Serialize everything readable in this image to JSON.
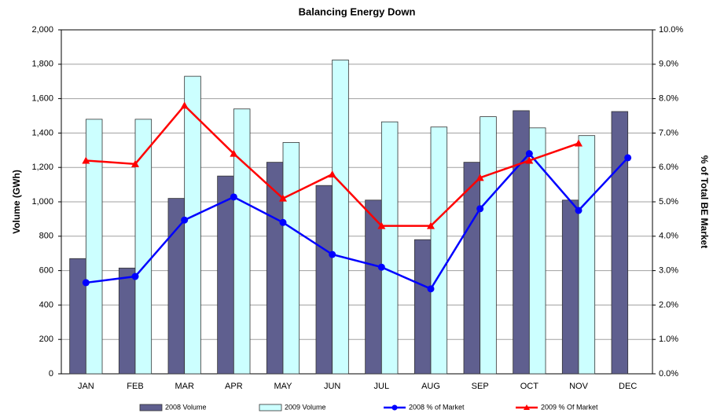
{
  "chart_data": {
    "type": "bar_line",
    "title": "Balancing Energy Down",
    "y_label": "Volume (GWh)",
    "y2_label": "% of Total BE Market",
    "categories": [
      "JAN",
      "FEB",
      "MAR",
      "APR",
      "MAY",
      "JUN",
      "JUL",
      "AUG",
      "SEP",
      "OCT",
      "NOV",
      "DEC"
    ],
    "series": [
      {
        "name": "2008 Volume",
        "type": "bar",
        "color": "#5f5f8f",
        "values": [
          670,
          615,
          1020,
          1150,
          1230,
          1095,
          1010,
          780,
          1230,
          1530,
          1010,
          1525
        ]
      },
      {
        "name": "2009 Volume",
        "type": "bar",
        "color": "#ccffff",
        "values": [
          1480,
          1480,
          1730,
          1540,
          1345,
          1825,
          1465,
          1435,
          1495,
          1430,
          1385,
          null
        ]
      },
      {
        "name": "2008 % of Market",
        "type": "line",
        "axis": "y2",
        "marker": "circle",
        "color": "#0000ff",
        "values": [
          2.65,
          2.83,
          4.47,
          5.14,
          4.4,
          3.47,
          3.1,
          2.47,
          4.8,
          6.4,
          4.75,
          6.28
        ]
      },
      {
        "name": "2009 % Of Market",
        "type": "line",
        "axis": "y2",
        "marker": "triangle",
        "color": "#ff0000",
        "values": [
          6.2,
          6.1,
          7.8,
          6.4,
          5.1,
          5.8,
          4.3,
          4.3,
          5.7,
          6.2,
          6.7,
          null
        ]
      }
    ],
    "ylim": [
      0,
      2000
    ],
    "yticks": [
      0,
      200,
      400,
      600,
      800,
      {
        "value": 1000,
        "label": "1,000"
      },
      {
        "value": 1200,
        "label": "1,200"
      },
      {
        "value": 1400,
        "label": "1,400"
      },
      {
        "value": 1600,
        "label": "1,600"
      },
      {
        "value": 1800,
        "label": "1,800"
      },
      {
        "value": 2000,
        "label": "2,000"
      }
    ],
    "y2lim": [
      0,
      10
    ],
    "y2ticks": [
      {
        "value": 0,
        "label": "0.0%"
      },
      {
        "value": 1,
        "label": "1.0%"
      },
      {
        "value": 2,
        "label": "2.0%"
      },
      {
        "value": 3,
        "label": "3.0%"
      },
      {
        "value": 4,
        "label": "4.0%"
      },
      {
        "value": 5,
        "label": "5.0%"
      },
      {
        "value": 6,
        "label": "6.0%"
      },
      {
        "value": 7,
        "label": "7.0%"
      },
      {
        "value": 8,
        "label": "8.0%"
      },
      {
        "value": 9,
        "label": "9.0%"
      },
      {
        "value": 10,
        "label": "10.0%"
      }
    ],
    "grid": true,
    "legend": "bottom"
  }
}
